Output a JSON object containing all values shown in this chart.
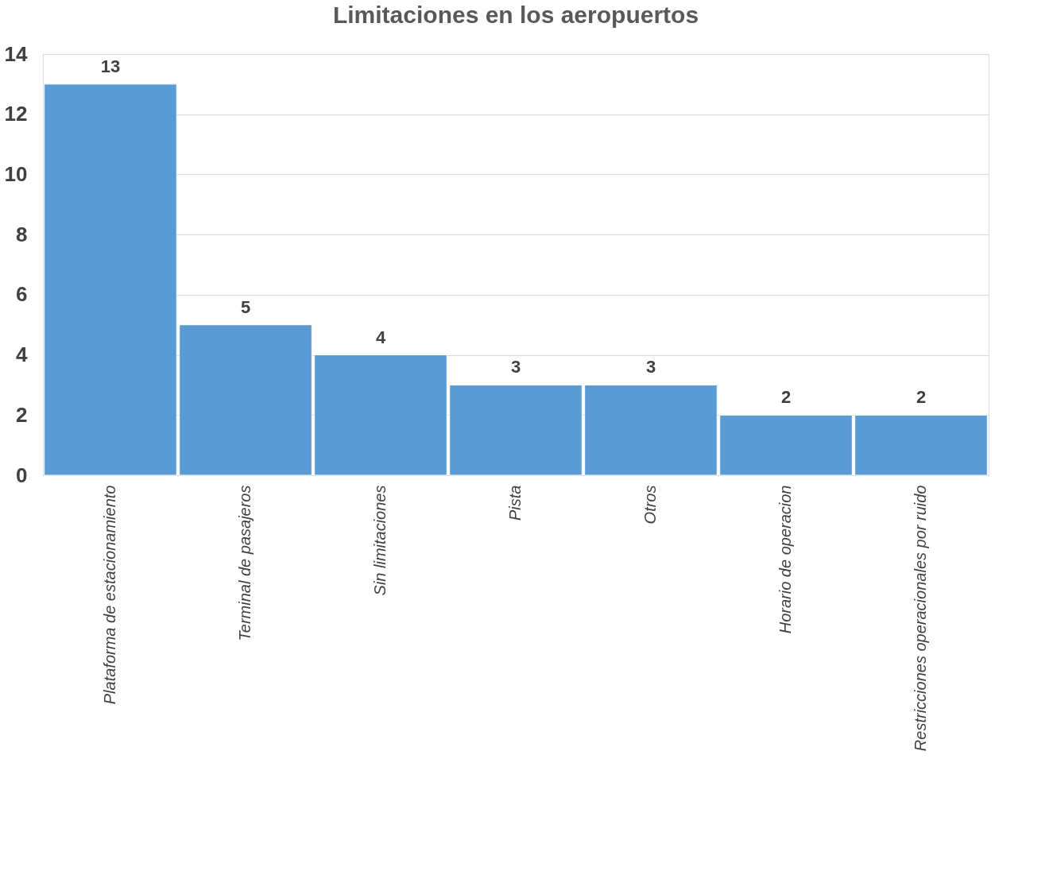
{
  "chart_data": {
    "type": "bar",
    "title": "Limitaciones en los aeropuertos",
    "categories": [
      "Plataforma de estacionamiento",
      "Terminal de pasajeros",
      "Sin limitaciones",
      "Pista",
      "Otros",
      "Horario de operacion",
      "Restricciones operacionales por ruido"
    ],
    "values": [
      13,
      5,
      4,
      3,
      3,
      2,
      2
    ],
    "color": "#5b9bd5",
    "ylim": [
      0,
      14
    ],
    "yticks": [
      0,
      2,
      4,
      6,
      8,
      10,
      12,
      14
    ],
    "grid": "y",
    "data_labels": true
  }
}
